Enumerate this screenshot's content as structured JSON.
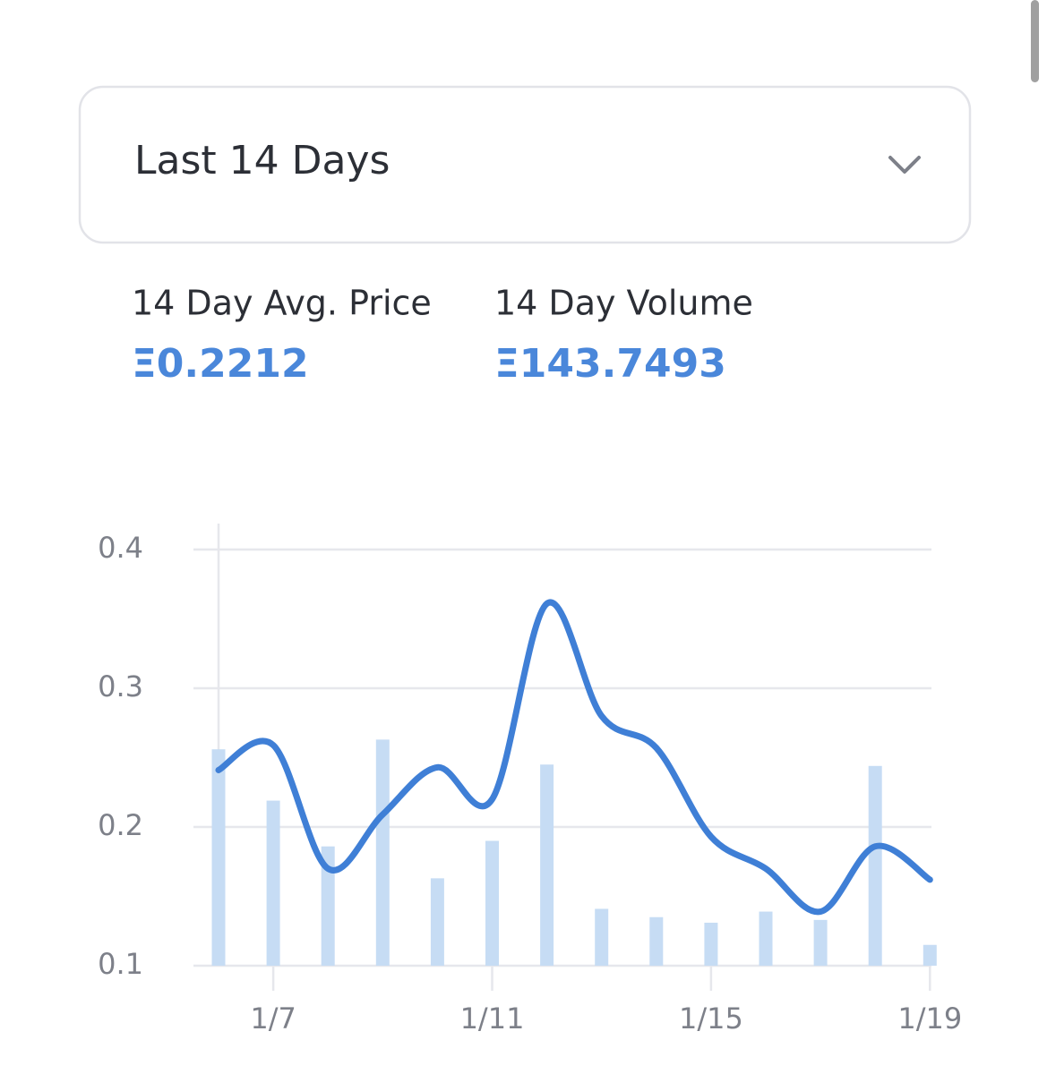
{
  "dropdown": {
    "label": "Last 14 Days"
  },
  "stats": [
    {
      "label": "14 Day Avg. Price",
      "value": "Ξ0.2212"
    },
    {
      "label": "14 Day Volume",
      "value": "Ξ143.7493"
    }
  ],
  "chart_data": {
    "type": "combo",
    "categories": [
      null,
      "1/7",
      null,
      null,
      null,
      "1/11",
      null,
      null,
      null,
      "1/15",
      null,
      null,
      null,
      "1/19"
    ],
    "series": [
      {
        "type": "bar",
        "color": "#c6dcf4",
        "values": [
          0.256,
          0.219,
          0.186,
          0.263,
          0.163,
          0.19,
          0.245,
          0.141,
          0.135,
          0.131,
          0.139,
          0.133,
          0.244,
          0.115
        ]
      },
      {
        "type": "line",
        "color": "#3f7fd6",
        "values": [
          0.241,
          0.259,
          0.17,
          0.209,
          0.243,
          0.22,
          0.361,
          0.28,
          0.257,
          0.193,
          0.17,
          0.139,
          0.186,
          0.162
        ]
      }
    ],
    "ylim": [
      0.1,
      0.4
    ],
    "yticks": [
      0.1,
      0.2,
      0.3,
      0.4
    ],
    "grid": true
  }
}
